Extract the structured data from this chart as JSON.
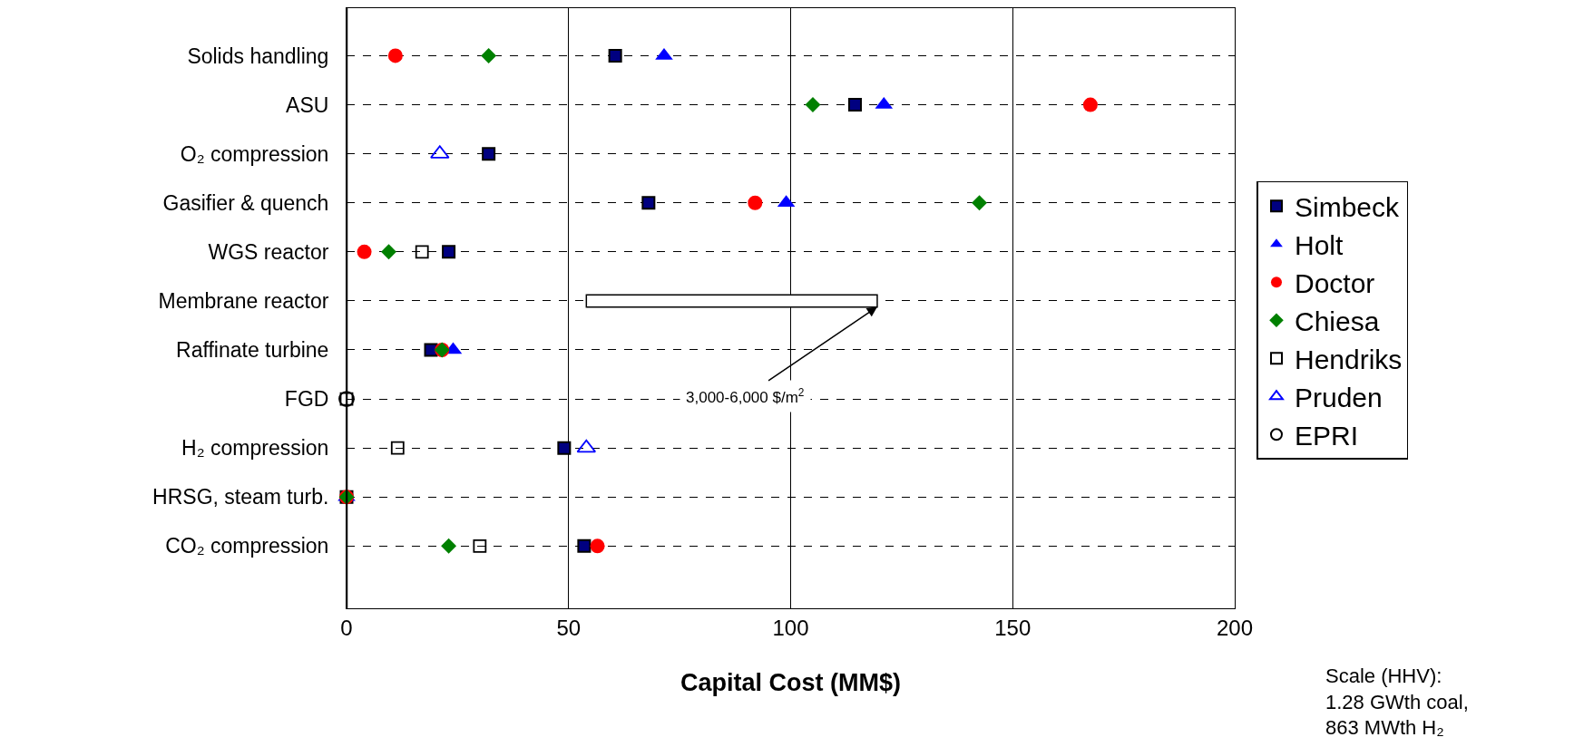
{
  "chart_data": {
    "type": "scatter",
    "orientation": "horizontal",
    "xlabel": "Capital Cost (MM$)",
    "categories": [
      "Solids handling",
      "ASU",
      "O₂ compression",
      "Gasifier & quench",
      "WGS reactor",
      "Membrane reactor",
      "Raffinate turbine",
      "FGD",
      "H₂ compression",
      "HRSG, steam turb.",
      "CO₂ compression"
    ],
    "xlim": [
      0,
      200
    ],
    "xticks": [
      0,
      50,
      100,
      150,
      200
    ],
    "grid": true,
    "legend": "right",
    "series": [
      {
        "type": "bar",
        "color": "#ffffff",
        "values": [
          null,
          null,
          null,
          null,
          null,
          65.5,
          null,
          null,
          null,
          null,
          null
        ],
        "base": [
          null,
          null,
          null,
          null,
          null,
          54,
          null,
          null,
          null,
          null,
          null
        ]
      },
      {
        "name": "Simbeck",
        "color": "#000080",
        "marker": "square",
        "values": [
          60.5,
          114.5,
          32,
          68,
          23,
          null,
          19,
          null,
          49,
          0,
          53.5
        ]
      },
      {
        "name": "Holt",
        "color": "#0000ff",
        "marker": "triangle",
        "values": [
          71.5,
          121,
          null,
          99,
          null,
          null,
          24,
          null,
          null,
          0,
          null
        ]
      },
      {
        "name": "Doctor",
        "color": "#ff0000",
        "marker": "circle",
        "values": [
          11,
          167.5,
          null,
          92,
          4,
          null,
          21.5,
          null,
          null,
          0,
          56.5
        ]
      },
      {
        "name": "Chiesa",
        "color": "#008000",
        "marker": "diamond",
        "values": [
          32,
          105,
          null,
          142.5,
          9.5,
          null,
          21.5,
          null,
          null,
          0,
          23
        ]
      },
      {
        "name": "Hendriks",
        "color": "#000000",
        "marker": "square",
        "values": [
          null,
          null,
          null,
          null,
          17,
          null,
          null,
          0,
          11.5,
          null,
          30
        ]
      },
      {
        "name": "Pruden",
        "color": "#0000ff",
        "marker": "triangle",
        "values": [
          null,
          null,
          21,
          null,
          null,
          null,
          null,
          null,
          54,
          null,
          null
        ]
      },
      {
        "name": "EPRI",
        "color": "#000000",
        "marker": "circle",
        "values": [
          null,
          null,
          null,
          null,
          null,
          null,
          null,
          0,
          null,
          null,
          null
        ]
      }
    ],
    "annotations": [
      {
        "text": "3,000-6,000 $/m$^{2}$",
        "x": 119.5,
        "y": "Membrane reactor"
      },
      "Scale (HHV):\n1.28 GWth coal,\n863 MWth H₂"
    ]
  }
}
